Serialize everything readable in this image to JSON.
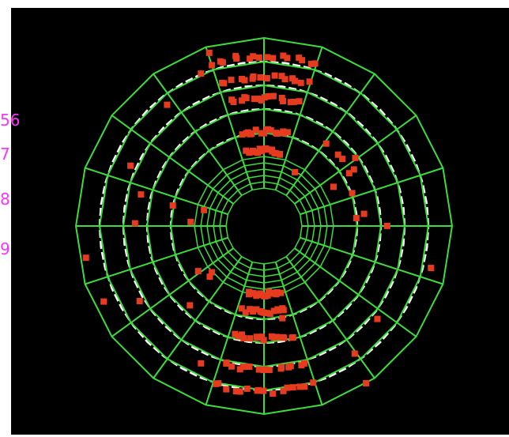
{
  "colors": {
    "background": "#000000",
    "page": "#ffffff",
    "green_grid": "#3ddc3d",
    "white_rings": "#ffffff",
    "hits": "#e63b1e",
    "labels": "#ff33ff"
  },
  "side_labels": [
    "56",
    "7",
    "8",
    "9"
  ],
  "diagram": {
    "sectors": 20,
    "outer_rings": 5,
    "inner_rings": 5,
    "white_rings": 4,
    "hit_clusters": [
      {
        "angle": 90,
        "radius": 0.88
      },
      {
        "angle": 90,
        "radius": 0.74
      },
      {
        "angle": 90,
        "radius": 0.6
      },
      {
        "angle": 90,
        "radius": 0.38
      },
      {
        "angle": 90,
        "radius": 0.25
      },
      {
        "angle": 270,
        "radius": 0.2
      },
      {
        "angle": 270,
        "radius": 0.32
      },
      {
        "angle": 270,
        "radius": 0.5
      },
      {
        "angle": 270,
        "radius": 0.7
      },
      {
        "angle": 270,
        "radius": 0.85
      }
    ]
  }
}
